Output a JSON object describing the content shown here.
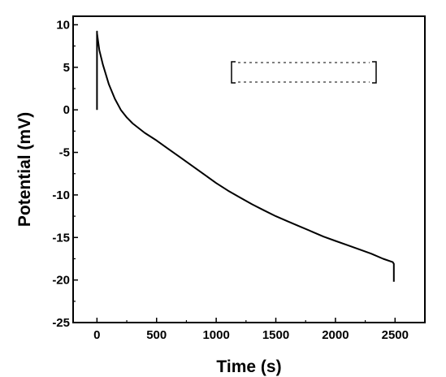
{
  "chart_data": {
    "type": "line",
    "title": "",
    "xlabel": "Time (s)",
    "ylabel": "Potential (mV)",
    "xlim": [
      -200,
      2750
    ],
    "ylim": [
      -25,
      11
    ],
    "xticks": [
      0,
      500,
      1000,
      1500,
      2000,
      2500
    ],
    "xtick_labels": [
      "0",
      "500",
      "1000",
      "1500",
      "2000",
      "2500"
    ],
    "yticks": [
      10,
      5,
      0,
      -5,
      -10,
      -15,
      -20,
      -25
    ],
    "ytick_labels": [
      "10",
      "5",
      "0",
      "-5",
      "-10",
      "-15",
      "-20",
      "-25"
    ],
    "grid": false,
    "series": [
      {
        "color": "#000000",
        "x": [
          0,
          0,
          0,
          20,
          50,
          100,
          150,
          200,
          250,
          300,
          400,
          500,
          600,
          700,
          800,
          900,
          1000,
          1100,
          1200,
          1300,
          1400,
          1500,
          1600,
          1700,
          1800,
          1900,
          2000,
          2100,
          2200,
          2300,
          2400,
          2480,
          2490,
          2490
        ],
        "y": [
          0,
          9.2,
          9.0,
          7.0,
          5.3,
          3.0,
          1.3,
          0.0,
          -0.9,
          -1.6,
          -2.7,
          -3.6,
          -4.6,
          -5.6,
          -6.6,
          -7.6,
          -8.6,
          -9.5,
          -10.3,
          -11.1,
          -11.8,
          -12.5,
          -13.1,
          -13.7,
          -14.3,
          -14.9,
          -15.4,
          -15.9,
          -16.4,
          -16.9,
          -17.5,
          -17.9,
          -18.1,
          -20.2
        ]
      }
    ],
    "legend": {
      "placement": "top-right",
      "entries": []
    }
  }
}
